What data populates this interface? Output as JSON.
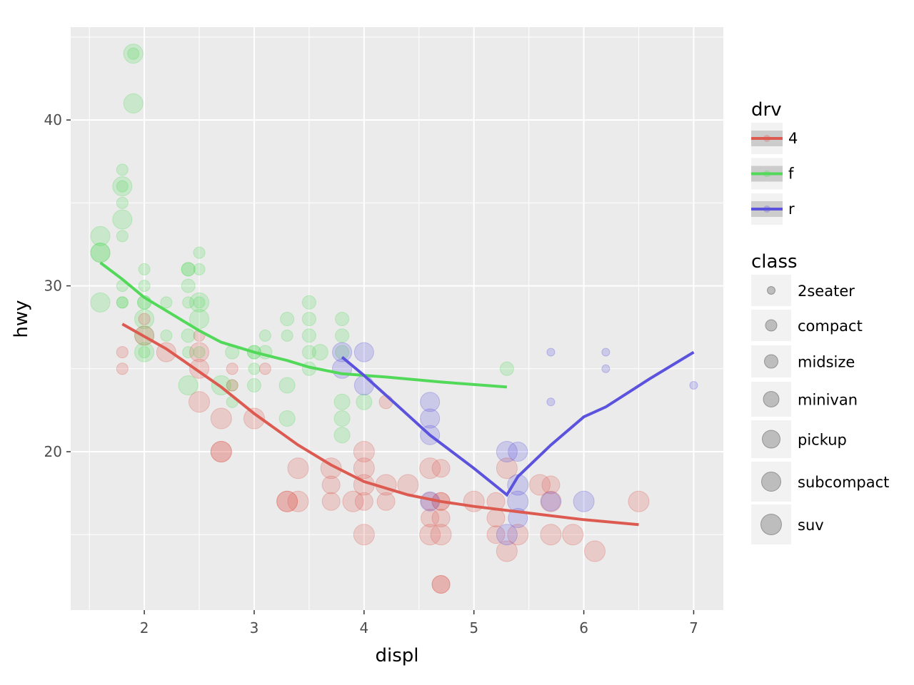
{
  "chart_data": {
    "type": "scatter",
    "xlabel": "displ",
    "ylabel": "hwy",
    "xlim": [
      1.33,
      7.27
    ],
    "ylim": [
      10.45,
      45.6
    ],
    "xticks": [
      2,
      3,
      4,
      5,
      6,
      7
    ],
    "yticks": [
      20,
      30,
      40
    ],
    "grid": true,
    "colors": {
      "4": "#dd5a50",
      "f": "#52d95a",
      "r": "#5b52dd"
    },
    "legend_color": {
      "title": "drv",
      "entries": [
        "4",
        "f",
        "r"
      ],
      "placement": "right"
    },
    "legend_size": {
      "title": "class",
      "entries": [
        "2seater",
        "compact",
        "midsize",
        "minivan",
        "pickup",
        "subcompact",
        "suv"
      ],
      "placement": "right"
    },
    "points": [
      [
        1.9,
        44,
        "f",
        "subcompact"
      ],
      [
        1.9,
        44,
        "f",
        "compact"
      ],
      [
        1.9,
        41,
        "f",
        "subcompact"
      ],
      [
        1.8,
        37,
        "f",
        "compact"
      ],
      [
        1.8,
        36,
        "f",
        "subcompact"
      ],
      [
        1.8,
        36,
        "f",
        "compact"
      ],
      [
        1.8,
        35,
        "f",
        "compact"
      ],
      [
        1.8,
        34,
        "f",
        "subcompact"
      ],
      [
        1.8,
        33,
        "f",
        "compact"
      ],
      [
        1.6,
        33,
        "f",
        "subcompact"
      ],
      [
        1.6,
        32,
        "f",
        "subcompact"
      ],
      [
        1.6,
        32,
        "f",
        "subcompact"
      ],
      [
        1.6,
        29,
        "f",
        "subcompact"
      ],
      [
        1.8,
        30,
        "f",
        "compact"
      ],
      [
        1.8,
        29,
        "f",
        "compact"
      ],
      [
        1.8,
        29,
        "f",
        "compact"
      ],
      [
        2.0,
        31,
        "f",
        "compact"
      ],
      [
        2.0,
        30,
        "f",
        "compact"
      ],
      [
        2.0,
        29,
        "f",
        "midsize"
      ],
      [
        2.0,
        29,
        "f",
        "midsize"
      ],
      [
        2.0,
        28,
        "f",
        "subcompact"
      ],
      [
        2.0,
        27,
        "f",
        "subcompact"
      ],
      [
        2.0,
        26,
        "f",
        "subcompact"
      ],
      [
        2.0,
        26,
        "f",
        "compact"
      ],
      [
        2.2,
        29,
        "f",
        "compact"
      ],
      [
        2.2,
        27,
        "f",
        "compact"
      ],
      [
        2.4,
        31,
        "f",
        "midsize"
      ],
      [
        2.4,
        31,
        "f",
        "midsize"
      ],
      [
        2.4,
        30,
        "f",
        "midsize"
      ],
      [
        2.4,
        29,
        "f",
        "compact"
      ],
      [
        2.4,
        27,
        "f",
        "midsize"
      ],
      [
        2.4,
        26,
        "f",
        "compact"
      ],
      [
        2.4,
        24,
        "f",
        "subcompact"
      ],
      [
        2.5,
        32,
        "f",
        "compact"
      ],
      [
        2.5,
        31,
        "f",
        "compact"
      ],
      [
        2.5,
        29,
        "f",
        "subcompact"
      ],
      [
        2.5,
        28,
        "f",
        "subcompact"
      ],
      [
        2.5,
        29,
        "f",
        "compact"
      ],
      [
        2.5,
        26,
        "f",
        "compact"
      ],
      [
        2.7,
        24,
        "f",
        "subcompact"
      ],
      [
        2.8,
        26,
        "f",
        "midsize"
      ],
      [
        2.8,
        24,
        "f",
        "compact"
      ],
      [
        2.8,
        23,
        "f",
        "compact"
      ],
      [
        3.0,
        26,
        "f",
        "midsize"
      ],
      [
        3.0,
        26,
        "f",
        "midsize"
      ],
      [
        3.0,
        25,
        "f",
        "compact"
      ],
      [
        3.0,
        24,
        "f",
        "midsize"
      ],
      [
        3.1,
        27,
        "f",
        "compact"
      ],
      [
        3.1,
        26,
        "f",
        "midsize"
      ],
      [
        3.3,
        28,
        "f",
        "midsize"
      ],
      [
        3.3,
        27,
        "f",
        "compact"
      ],
      [
        3.3,
        24,
        "f",
        "minivan"
      ],
      [
        3.3,
        22,
        "f",
        "minivan"
      ],
      [
        3.5,
        29,
        "f",
        "midsize"
      ],
      [
        3.5,
        28,
        "f",
        "midsize"
      ],
      [
        3.5,
        27,
        "f",
        "midsize"
      ],
      [
        3.5,
        26,
        "f",
        "midsize"
      ],
      [
        3.5,
        25,
        "f",
        "midsize"
      ],
      [
        3.6,
        26,
        "f",
        "minivan"
      ],
      [
        3.8,
        28,
        "f",
        "midsize"
      ],
      [
        3.8,
        27,
        "f",
        "midsize"
      ],
      [
        3.8,
        26,
        "f",
        "midsize"
      ],
      [
        3.8,
        23,
        "f",
        "minivan"
      ],
      [
        3.8,
        22,
        "f",
        "minivan"
      ],
      [
        3.8,
        21,
        "f",
        "minivan"
      ],
      [
        4.0,
        23,
        "f",
        "minivan"
      ],
      [
        5.3,
        25,
        "f",
        "midsize"
      ],
      [
        1.8,
        26,
        "4",
        "compact"
      ],
      [
        1.8,
        25,
        "4",
        "compact"
      ],
      [
        2.0,
        28,
        "4",
        "compact"
      ],
      [
        2.0,
        27,
        "4",
        "subcompact"
      ],
      [
        2.2,
        26,
        "4",
        "subcompact"
      ],
      [
        2.5,
        27,
        "4",
        "compact"
      ],
      [
        2.5,
        26,
        "4",
        "subcompact"
      ],
      [
        2.5,
        25,
        "4",
        "subcompact"
      ],
      [
        2.5,
        23,
        "4",
        "suv"
      ],
      [
        2.7,
        22,
        "4",
        "suv"
      ],
      [
        2.7,
        20,
        "4",
        "suv"
      ],
      [
        2.7,
        20,
        "4",
        "suv"
      ],
      [
        2.8,
        25,
        "4",
        "compact"
      ],
      [
        2.8,
        24,
        "4",
        "compact"
      ],
      [
        3.0,
        22,
        "4",
        "suv"
      ],
      [
        3.1,
        25,
        "4",
        "compact"
      ],
      [
        3.3,
        17,
        "4",
        "suv"
      ],
      [
        3.3,
        17,
        "4",
        "suv"
      ],
      [
        3.4,
        19,
        "4",
        "suv"
      ],
      [
        3.4,
        17,
        "4",
        "suv"
      ],
      [
        3.7,
        19,
        "4",
        "suv"
      ],
      [
        3.7,
        18,
        "4",
        "pickup"
      ],
      [
        3.7,
        17,
        "4",
        "pickup"
      ],
      [
        3.9,
        17,
        "4",
        "suv"
      ],
      [
        4.0,
        20,
        "4",
        "suv"
      ],
      [
        4.0,
        19,
        "4",
        "suv"
      ],
      [
        4.0,
        18,
        "4",
        "suv"
      ],
      [
        4.0,
        17,
        "4",
        "pickup"
      ],
      [
        4.0,
        15,
        "4",
        "suv"
      ],
      [
        4.2,
        23,
        "4",
        "midsize"
      ],
      [
        4.2,
        18,
        "4",
        "suv"
      ],
      [
        4.2,
        17,
        "4",
        "pickup"
      ],
      [
        4.4,
        18,
        "4",
        "suv"
      ],
      [
        4.6,
        19,
        "4",
        "suv"
      ],
      [
        4.6,
        17,
        "4",
        "pickup"
      ],
      [
        4.6,
        16,
        "4",
        "pickup"
      ],
      [
        4.6,
        15,
        "4",
        "suv"
      ],
      [
        4.7,
        19,
        "4",
        "pickup"
      ],
      [
        4.7,
        17,
        "4",
        "pickup"
      ],
      [
        4.7,
        17,
        "4",
        "pickup"
      ],
      [
        4.7,
        16,
        "4",
        "pickup"
      ],
      [
        4.7,
        15,
        "4",
        "suv"
      ],
      [
        4.7,
        12,
        "4",
        "pickup"
      ],
      [
        4.7,
        12,
        "4",
        "pickup"
      ],
      [
        5.0,
        17,
        "4",
        "suv"
      ],
      [
        5.2,
        17,
        "4",
        "pickup"
      ],
      [
        5.2,
        16,
        "4",
        "pickup"
      ],
      [
        5.2,
        15,
        "4",
        "pickup"
      ],
      [
        5.3,
        19,
        "4",
        "suv"
      ],
      [
        5.3,
        14,
        "4",
        "suv"
      ],
      [
        5.4,
        15,
        "4",
        "suv"
      ],
      [
        5.6,
        18,
        "4",
        "suv"
      ],
      [
        5.7,
        18,
        "4",
        "pickup"
      ],
      [
        5.7,
        17,
        "4",
        "suv"
      ],
      [
        5.7,
        15,
        "4",
        "suv"
      ],
      [
        5.9,
        15,
        "4",
        "suv"
      ],
      [
        6.1,
        14,
        "4",
        "suv"
      ],
      [
        6.5,
        17,
        "4",
        "suv"
      ],
      [
        3.8,
        26,
        "r",
        "subcompact"
      ],
      [
        3.8,
        25,
        "r",
        "subcompact"
      ],
      [
        4.0,
        26,
        "r",
        "subcompact"
      ],
      [
        4.0,
        24,
        "r",
        "subcompact"
      ],
      [
        4.6,
        23,
        "r",
        "subcompact"
      ],
      [
        4.6,
        22,
        "r",
        "subcompact"
      ],
      [
        4.6,
        21,
        "r",
        "subcompact"
      ],
      [
        4.6,
        17,
        "r",
        "subcompact"
      ],
      [
        5.3,
        20,
        "r",
        "suv"
      ],
      [
        5.3,
        15,
        "r",
        "suv"
      ],
      [
        5.4,
        20,
        "r",
        "subcompact"
      ],
      [
        5.4,
        18,
        "r",
        "suv"
      ],
      [
        5.4,
        17,
        "r",
        "suv"
      ],
      [
        5.4,
        16,
        "r",
        "subcompact"
      ],
      [
        5.7,
        26,
        "r",
        "2seater"
      ],
      [
        5.7,
        23,
        "r",
        "2seater"
      ],
      [
        5.7,
        17,
        "r",
        "subcompact"
      ],
      [
        6.0,
        17,
        "r",
        "suv"
      ],
      [
        6.2,
        26,
        "r",
        "2seater"
      ],
      [
        6.2,
        25,
        "r",
        "2seater"
      ],
      [
        7.0,
        24,
        "r",
        "2seater"
      ]
    ],
    "smooth": [
      {
        "drv": "4",
        "x": [
          1.8,
          2.2,
          2.7,
          3.0,
          3.4,
          3.7,
          4.0,
          4.4,
          4.7,
          5.0,
          5.5,
          6.0,
          6.5
        ],
        "y": [
          27.7,
          26.2,
          23.9,
          22.3,
          20.4,
          19.2,
          18.2,
          17.4,
          17.0,
          16.7,
          16.3,
          15.9,
          15.6
        ]
      },
      {
        "drv": "f",
        "x": [
          1.6,
          1.8,
          2.0,
          2.3,
          2.5,
          2.7,
          3.0,
          3.3,
          3.5,
          3.8,
          4.2,
          4.7,
          5.3
        ],
        "y": [
          31.4,
          30.4,
          29.3,
          28.1,
          27.3,
          26.6,
          26.0,
          25.5,
          25.1,
          24.7,
          24.5,
          24.2,
          23.9
        ]
      },
      {
        "drv": "r",
        "x": [
          3.8,
          4.0,
          4.3,
          4.6,
          5.0,
          5.3,
          5.4,
          5.7,
          6.0,
          6.2,
          6.6,
          7.0
        ],
        "y": [
          25.7,
          24.6,
          22.8,
          21.0,
          19.0,
          17.4,
          18.5,
          20.4,
          22.1,
          22.7,
          24.4,
          26.0
        ]
      }
    ]
  }
}
